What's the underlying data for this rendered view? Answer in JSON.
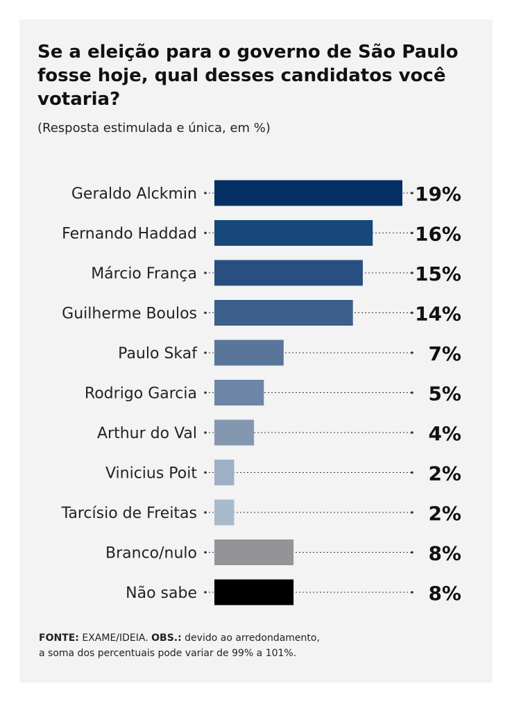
{
  "header": {
    "title": "Se a eleição para o governo de São Paulo fosse hoje, qual desses candidatos você votaria?",
    "subtitle": "(Resposta estimulada e única, em %)"
  },
  "chart_data": {
    "type": "bar",
    "orientation": "horizontal",
    "title": "Se a eleição para o governo de São Paulo fosse hoje, qual desses candidatos você votaria?",
    "subtitle": "(Resposta estimulada e única, em %)",
    "categories": [
      "Geraldo Alckmin",
      "Fernando Haddad",
      "Márcio França",
      "Guilherme Boulos",
      "Paulo Skaf",
      "Rodrigo Garcia",
      "Arthur do Val",
      "Vinicius Poit",
      "Tarcísio de Freitas",
      "Branco/nulo",
      "Não sabe"
    ],
    "values": [
      19,
      16,
      15,
      14,
      7,
      5,
      4,
      2,
      2,
      8,
      8
    ],
    "value_labels": [
      "19%",
      "16%",
      "15%",
      "14%",
      "7%",
      "5%",
      "4%",
      "2%",
      "2%",
      "8%",
      "8%"
    ],
    "colors": [
      "#052f62",
      "#17487a",
      "#284f80",
      "#3b5f8a",
      "#59769a",
      "#6d85a6",
      "#8397b1",
      "#9eb0c6",
      "#a9bacd",
      "#939398",
      "#000000"
    ],
    "xlim": [
      0,
      19
    ],
    "grid": false,
    "legend": "none"
  },
  "footer": {
    "source_label": "FONTE:",
    "source_text": "EXAME/IDEIA.",
    "obs_label": "OBS.:",
    "obs_text": "devido ao arredondamento,",
    "obs_text_2": "a soma dos percentuais pode variar de 99% a 101%."
  }
}
